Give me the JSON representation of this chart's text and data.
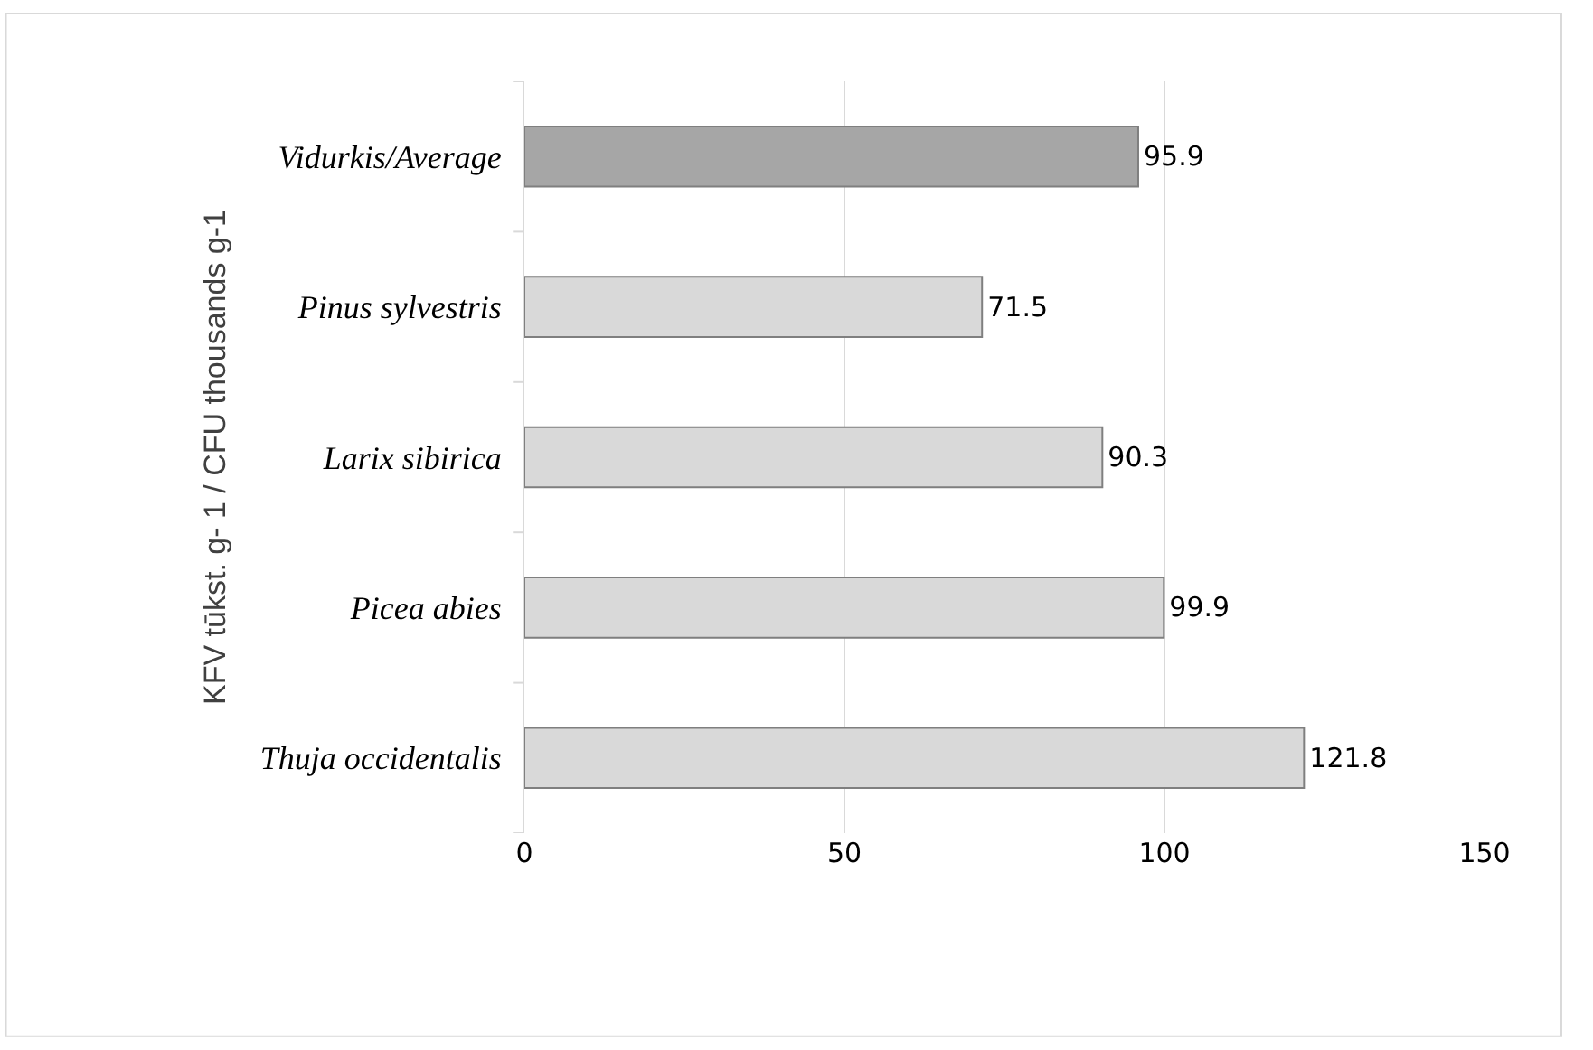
{
  "chart_data": {
    "type": "bar",
    "orientation": "horizontal",
    "ylabel": "KFV tūkst. g- 1 / CFU thousands g-1",
    "categories": [
      "Vidurkis/Average",
      "Pinus sylvestris",
      "Larix sibirica",
      "Picea abies",
      "Thuja occidentalis"
    ],
    "values": [
      95.9,
      71.5,
      90.3,
      99.9,
      121.8
    ],
    "colors": [
      "#a6a6a6",
      "#d9d9d9",
      "#d9d9d9",
      "#d9d9d9",
      "#d9d9d9"
    ],
    "xlim": [
      0,
      150
    ],
    "xticks": [
      0,
      50,
      100,
      150
    ],
    "grid": "x",
    "data_labels": true,
    "legend": false
  }
}
